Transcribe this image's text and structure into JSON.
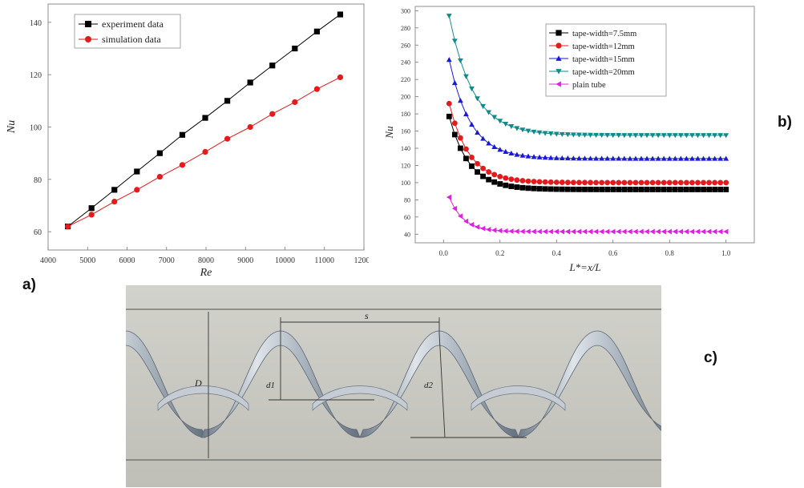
{
  "labels": {
    "a": "a)",
    "b": "b)",
    "c": "c)"
  },
  "chart_data": [
    {
      "type": "line",
      "panel": "a",
      "xlabel": "Re",
      "ylabel": "Nu",
      "xlim": [
        4000,
        12000
      ],
      "ylim": [
        53,
        147
      ],
      "xticks": [
        4000,
        5000,
        6000,
        7000,
        8000,
        9000,
        10000,
        11000,
        12000
      ],
      "yticks": [
        60,
        80,
        100,
        120,
        140
      ],
      "legend_position": "top-left",
      "grid": false,
      "series": [
        {
          "name": "experiment data",
          "color": "#000000",
          "marker": "square",
          "x": [
            4500,
            5100,
            5680,
            6250,
            6830,
            7400,
            7980,
            8540,
            9120,
            9680,
            10250,
            10810,
            11400
          ],
          "y": [
            62,
            69,
            76,
            83,
            90,
            97,
            103.5,
            110,
            117,
            123.5,
            130,
            136.5,
            143
          ]
        },
        {
          "name": "simulation data",
          "color": "#e41a1c",
          "marker": "circle",
          "x": [
            4500,
            5100,
            5680,
            6250,
            6830,
            7400,
            7980,
            8540,
            9120,
            9680,
            10250,
            10810,
            11400
          ],
          "y": [
            62,
            66.5,
            71.5,
            76,
            81,
            85.5,
            90.5,
            95.5,
            100,
            105,
            109.5,
            114.5,
            119
          ]
        }
      ]
    },
    {
      "type": "line",
      "panel": "b",
      "xlabel": "L*=x/L",
      "ylabel": "Nu",
      "xlim": [
        -0.1,
        1.1
      ],
      "ylim": [
        30,
        305
      ],
      "xticks": [
        "0.0",
        "0.2",
        "0.4",
        "0.6",
        "0.8",
        "1.0"
      ],
      "yticks": [
        40,
        60,
        80,
        100,
        120,
        140,
        160,
        180,
        200,
        220,
        240,
        260,
        280,
        300
      ],
      "legend_position": "top-right",
      "grid": false,
      "curve_model": "Nu(L*) = plateau + (Nu at L*=0.02 - plateau) * exp(-(L*-0.02)/decay), markers every 0.02",
      "series": [
        {
          "name": "tape-width=7.5mm",
          "color": "#000000",
          "marker": "square",
          "start": 177,
          "plateau": 92,
          "decay": 0.07
        },
        {
          "name": "tape-width=12mm",
          "color": "#e41a1c",
          "marker": "circle",
          "start": 192,
          "plateau": 100,
          "decay": 0.07
        },
        {
          "name": "tape-width=15mm",
          "color": "#1a1ad6",
          "marker": "triangle-up",
          "start": 243,
          "plateau": 128,
          "decay": 0.075
        },
        {
          "name": "tape-width=20mm",
          "color": "#138a8a",
          "marker": "triangle-down",
          "start": 294,
          "plateau": 155,
          "decay": 0.085
        },
        {
          "name": "plain tube",
          "color": "#e020e0",
          "marker": "triangle-left",
          "start": 83,
          "plateau": 43,
          "decay": 0.05
        }
      ]
    }
  ],
  "diagram_c": {
    "labels": {
      "pitch": "s",
      "diameter": "D",
      "d1": "d1",
      "d2": "d2"
    },
    "colors": {
      "background": "#c9c9c2",
      "tape_light": "#d7dde3",
      "tape_dark": "#7a8592"
    }
  }
}
